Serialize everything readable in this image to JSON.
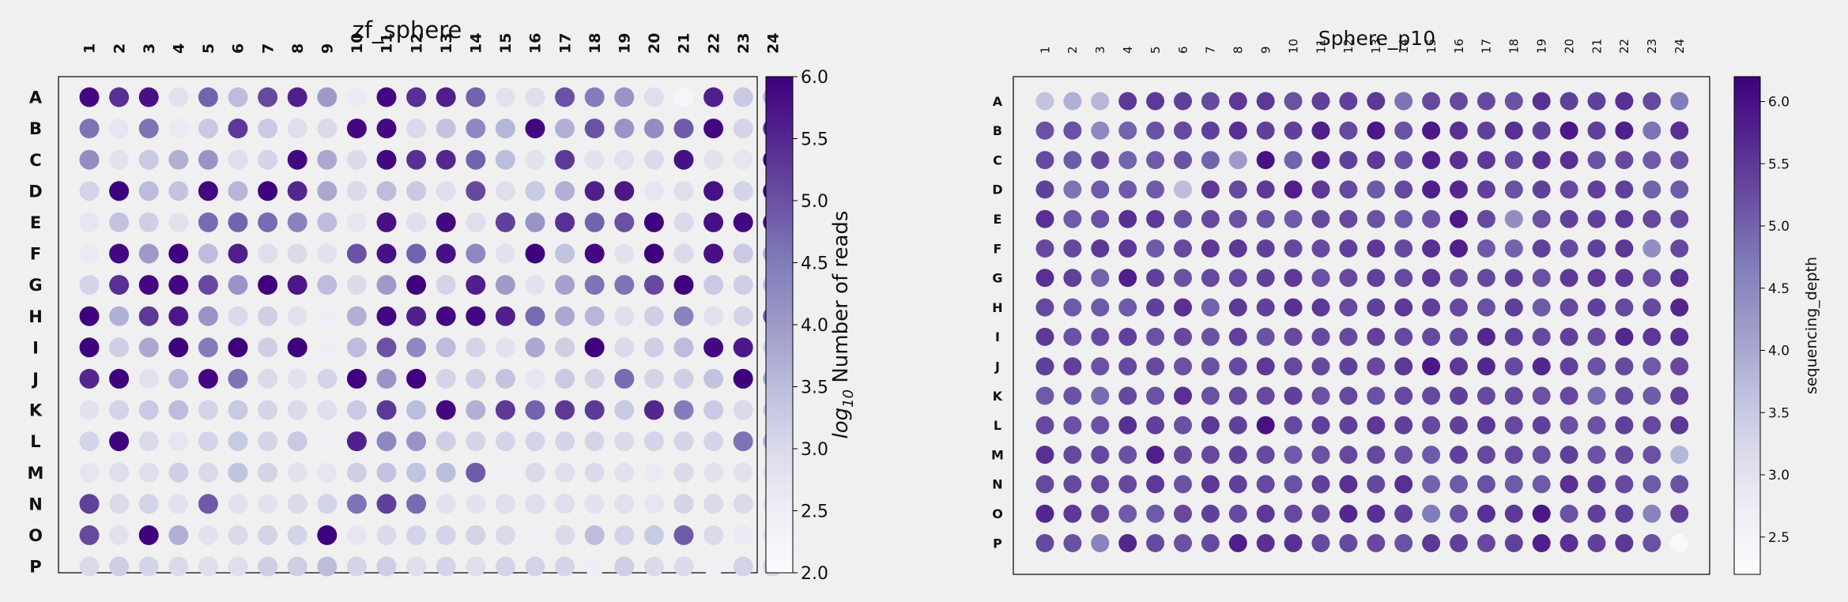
{
  "chart_data": [
    {
      "type": "heatmap",
      "title": "zf_sphere",
      "rows": [
        "A",
        "B",
        "C",
        "D",
        "E",
        "F",
        "G",
        "H",
        "I",
        "J",
        "K",
        "L",
        "M",
        "N",
        "O",
        "P"
      ],
      "columns": [
        "1",
        "2",
        "3",
        "4",
        "5",
        "6",
        "7",
        "8",
        "9",
        "10",
        "11",
        "12",
        "13",
        "14",
        "15",
        "16",
        "17",
        "18",
        "19",
        "20",
        "21",
        "22",
        "23",
        "24"
      ],
      "colorbar": {
        "label_prefix": "log",
        "label_sub": "10",
        "label_suffix": " Number of reads",
        "min": 2.0,
        "max": 6.0,
        "ticks": [
          "2.0",
          "2.5",
          "3.0",
          "3.5",
          "4.0",
          "4.5",
          "5.0",
          "5.5",
          "6.0"
        ]
      },
      "colormap": [
        "#fcfbfd",
        "#efedf5",
        "#dadaeb",
        "#bcbddc",
        "#9e9ac8",
        "#807dba",
        "#6a51a3",
        "#54278f",
        "#3f007d"
      ],
      "values": [
        [
          5.9,
          5.4,
          5.8,
          2.8,
          4.8,
          3.5,
          5.1,
          5.6,
          4.0,
          2.6,
          5.9,
          5.4,
          5.6,
          4.8,
          2.8,
          2.9,
          5.0,
          4.5,
          4.1,
          2.9,
          2.2,
          5.6,
          3.3,
          3.7
        ],
        [
          4.6,
          2.7,
          4.6,
          2.6,
          3.3,
          5.3,
          3.3,
          2.9,
          3.0,
          5.9,
          5.9,
          3.0,
          3.4,
          4.3,
          3.6,
          5.9,
          3.7,
          5.0,
          4.1,
          4.2,
          4.9,
          5.9,
          3.1,
          5.4
        ],
        [
          4.2,
          2.8,
          3.3,
          3.7,
          4.1,
          2.9,
          3.1,
          5.9,
          3.8,
          3.0,
          5.9,
          5.4,
          5.5,
          4.8,
          3.5,
          2.8,
          5.3,
          2.8,
          2.8,
          3.0,
          5.8,
          2.8,
          2.7,
          6.0
        ],
        [
          3.1,
          6.0,
          3.5,
          3.4,
          5.9,
          3.6,
          6.0,
          5.5,
          3.8,
          3.0,
          3.5,
          3.3,
          2.9,
          5.1,
          2.9,
          3.3,
          3.7,
          5.6,
          5.7,
          2.7,
          2.9,
          5.8,
          3.1,
          6.0
        ],
        [
          2.7,
          3.4,
          3.2,
          2.8,
          4.7,
          4.8,
          4.7,
          4.4,
          3.5,
          2.7,
          5.8,
          2.9,
          5.9,
          2.9,
          5.2,
          4.1,
          5.4,
          4.8,
          5.0,
          6.0,
          3.0,
          5.8,
          5.9,
          5.9
        ],
        [
          2.6,
          5.9,
          4.0,
          6.0,
          3.5,
          5.6,
          2.9,
          3.0,
          2.8,
          5.0,
          5.8,
          4.8,
          5.8,
          4.3,
          2.8,
          6.0,
          3.4,
          5.9,
          2.8,
          6.0,
          3.0,
          5.8,
          3.3,
          3.8
        ],
        [
          3.1,
          5.4,
          5.9,
          5.9,
          5.1,
          4.1,
          6.0,
          5.7,
          3.5,
          3.0,
          4.0,
          6.0,
          3.1,
          5.6,
          4.0,
          2.8,
          3.9,
          4.6,
          4.6,
          5.1,
          6.0,
          3.3,
          3.2,
          3.5
        ],
        [
          6.0,
          3.7,
          5.3,
          5.7,
          4.1,
          3.0,
          3.2,
          2.8,
          2.5,
          3.7,
          5.9,
          5.6,
          5.9,
          5.9,
          5.6,
          4.7,
          3.8,
          3.6,
          2.9,
          3.2,
          4.4,
          2.8,
          3.1,
          4.9
        ],
        [
          6.0,
          3.2,
          3.8,
          6.0,
          4.5,
          6.0,
          3.2,
          6.0,
          2.5,
          3.5,
          5.0,
          4.3,
          3.5,
          3.1,
          2.8,
          3.8,
          3.2,
          6.0,
          3.0,
          3.2,
          3.5,
          5.9,
          5.7,
          3.2
        ],
        [
          5.5,
          6.0,
          2.8,
          3.6,
          5.9,
          4.6,
          3.0,
          2.8,
          3.1,
          6.0,
          4.1,
          6.0,
          3.1,
          3.2,
          3.4,
          2.7,
          3.3,
          3.1,
          4.7,
          3.1,
          3.2,
          3.4,
          6.0,
          3.8
        ],
        [
          2.8,
          3.1,
          3.3,
          3.5,
          3.1,
          3.3,
          3.1,
          3.0,
          2.9,
          3.3,
          5.3,
          3.5,
          5.9,
          3.7,
          5.3,
          4.8,
          5.3,
          5.3,
          3.3,
          5.5,
          4.5,
          3.3,
          3.0,
          3.3
        ],
        [
          3.1,
          6.0,
          3.0,
          2.7,
          3.1,
          3.3,
          3.1,
          3.3,
          2.4,
          5.6,
          4.3,
          4.1,
          3.2,
          3.1,
          3.1,
          3.1,
          3.1,
          3.1,
          3.0,
          3.1,
          3.1,
          3.1,
          4.6,
          3.7
        ],
        [
          2.7,
          2.9,
          2.9,
          3.2,
          3.0,
          3.4,
          3.1,
          2.8,
          2.7,
          3.2,
          3.4,
          3.4,
          3.5,
          4.9,
          2.4,
          3.0,
          2.9,
          3.0,
          2.8,
          2.6,
          3.0,
          2.8,
          2.8,
          2.9
        ],
        [
          5.2,
          3.0,
          3.1,
          2.8,
          4.9,
          2.8,
          2.8,
          3.0,
          3.1,
          4.6,
          5.2,
          4.7,
          2.8,
          2.8,
          2.9,
          2.9,
          2.9,
          2.8,
          2.8,
          2.7,
          3.1,
          3.0,
          3.0,
          2.9
        ],
        [
          5.1,
          2.8,
          6.0,
          3.7,
          2.8,
          3.0,
          3.1,
          3.1,
          6.0,
          2.7,
          3.0,
          3.1,
          3.1,
          3.1,
          3.0,
          2.4,
          3.0,
          3.5,
          3.1,
          3.3,
          4.9,
          3.0,
          2.6,
          2.9
        ],
        [
          3.0,
          3.2,
          3.1,
          3.0,
          2.9,
          2.9,
          3.2,
          3.2,
          3.5,
          3.1,
          3.2,
          2.9,
          3.1,
          2.9,
          3.1,
          3.1,
          3.1,
          2.5,
          3.2,
          3.0,
          3.0,
          2.4,
          3.1,
          3.1
        ]
      ]
    },
    {
      "type": "heatmap",
      "title": "Sphere_p10",
      "rows": [
        "A",
        "B",
        "C",
        "D",
        "E",
        "F",
        "G",
        "H",
        "I",
        "J",
        "K",
        "L",
        "M",
        "N",
        "O",
        "P"
      ],
      "columns": [
        "1",
        "2",
        "3",
        "4",
        "5",
        "6",
        "7",
        "8",
        "9",
        "10",
        "11",
        "12",
        "13",
        "14",
        "15",
        "16",
        "17",
        "18",
        "19",
        "20",
        "21",
        "22",
        "23",
        "24"
      ],
      "colorbar": {
        "label": "sequencing_depth",
        "min": 2.2,
        "max": 6.2,
        "ticks": [
          "2.5",
          "3.0",
          "3.5",
          "4.0",
          "4.5",
          "5.0",
          "5.5",
          "6.0"
        ]
      },
      "colormap": [
        "#fcfbfd",
        "#efedf5",
        "#dadaeb",
        "#bcbddc",
        "#9e9ac8",
        "#807dba",
        "#6a51a3",
        "#54278f",
        "#3f007d"
      ],
      "values": [
        [
          3.6,
          3.9,
          3.8,
          5.5,
          5.5,
          5.4,
          5.3,
          5.5,
          5.5,
          5.2,
          5.4,
          5.4,
          5.5,
          4.8,
          5.3,
          5.3,
          5.3,
          5.2,
          5.6,
          5.4,
          5.4,
          5.6,
          5.3,
          4.7
        ],
        [
          5.2,
          5.2,
          4.5,
          5.0,
          5.2,
          5.3,
          5.4,
          5.6,
          5.4,
          5.4,
          5.8,
          5.3,
          5.9,
          5.2,
          5.9,
          5.6,
          5.4,
          5.6,
          5.4,
          5.9,
          5.4,
          5.8,
          4.8,
          5.6
        ],
        [
          5.3,
          5.1,
          5.3,
          5.0,
          5.1,
          5.2,
          5.0,
          4.2,
          6.0,
          5.0,
          5.8,
          5.4,
          5.5,
          5.2,
          5.8,
          5.6,
          5.5,
          5.3,
          5.6,
          5.6,
          5.2,
          5.3,
          5.1,
          5.2
        ],
        [
          5.4,
          4.8,
          5.1,
          5.1,
          5.1,
          3.7,
          5.5,
          5.3,
          5.5,
          5.8,
          5.5,
          5.3,
          5.1,
          5.3,
          5.8,
          5.7,
          5.4,
          5.2,
          5.4,
          5.3,
          5.4,
          5.4,
          5.0,
          5.1
        ],
        [
          5.6,
          5.1,
          5.2,
          5.6,
          5.5,
          5.2,
          5.3,
          5.2,
          5.2,
          5.1,
          5.3,
          5.3,
          5.2,
          5.1,
          5.2,
          5.9,
          5.3,
          4.4,
          5.2,
          5.4,
          5.4,
          5.5,
          5.3,
          5.3
        ],
        [
          5.3,
          5.3,
          5.5,
          5.5,
          5.1,
          5.3,
          5.5,
          5.5,
          5.4,
          5.3,
          5.3,
          5.4,
          5.5,
          5.3,
          5.6,
          5.8,
          5.1,
          5.0,
          5.4,
          5.3,
          5.4,
          5.5,
          4.4,
          5.3
        ],
        [
          5.6,
          5.4,
          5.0,
          5.8,
          5.4,
          5.2,
          5.3,
          5.3,
          5.4,
          5.5,
          5.2,
          5.3,
          5.4,
          5.3,
          5.5,
          5.3,
          5.3,
          5.4,
          5.2,
          5.5,
          5.5,
          5.5,
          5.2,
          5.6
        ],
        [
          5.3,
          5.1,
          5.1,
          5.1,
          5.4,
          5.6,
          5.0,
          5.5,
          5.4,
          5.6,
          5.5,
          5.3,
          5.4,
          5.5,
          5.4,
          5.3,
          5.2,
          5.4,
          5.1,
          5.3,
          5.4,
          5.3,
          5.3,
          5.7
        ],
        [
          5.5,
          5.2,
          5.3,
          5.4,
          5.2,
          5.3,
          5.2,
          5.4,
          5.2,
          5.3,
          5.3,
          5.3,
          5.4,
          5.3,
          5.3,
          5.3,
          5.7,
          5.4,
          5.3,
          5.4,
          5.3,
          5.7,
          5.5,
          5.6
        ],
        [
          5.4,
          5.4,
          5.2,
          5.3,
          5.3,
          5.2,
          5.2,
          5.3,
          5.5,
          5.3,
          5.3,
          5.4,
          5.3,
          5.5,
          5.9,
          5.5,
          5.7,
          5.3,
          5.7,
          5.4,
          5.2,
          5.3,
          5.1,
          5.3
        ],
        [
          5.1,
          5.2,
          4.9,
          5.3,
          5.2,
          5.6,
          5.2,
          5.3,
          5.3,
          5.4,
          5.2,
          5.3,
          5.2,
          5.3,
          5.3,
          5.4,
          5.3,
          5.3,
          5.2,
          5.3,
          4.9,
          5.3,
          5.1,
          5.4
        ],
        [
          5.3,
          5.2,
          5.2,
          5.6,
          5.4,
          5.2,
          5.5,
          5.4,
          6.0,
          5.3,
          5.4,
          5.4,
          5.5,
          5.4,
          5.3,
          5.4,
          5.5,
          5.3,
          5.4,
          5.2,
          5.2,
          5.4,
          5.3,
          5.5
        ],
        [
          5.6,
          5.3,
          5.3,
          5.2,
          5.8,
          5.3,
          5.3,
          5.4,
          5.3,
          5.1,
          5.2,
          5.3,
          5.3,
          5.2,
          5.1,
          5.4,
          5.3,
          5.3,
          5.2,
          5.4,
          5.2,
          5.3,
          5.2,
          3.8
        ],
        [
          5.3,
          5.3,
          5.3,
          5.3,
          5.5,
          5.2,
          5.5,
          5.4,
          5.3,
          5.2,
          5.4,
          5.6,
          5.3,
          5.6,
          5.0,
          5.1,
          5.2,
          5.1,
          5.1,
          5.6,
          5.4,
          5.3,
          5.1,
          5.2
        ],
        [
          5.7,
          5.5,
          5.3,
          5.1,
          5.1,
          5.3,
          5.4,
          5.3,
          5.5,
          5.3,
          5.3,
          5.7,
          5.6,
          5.4,
          4.7,
          5.2,
          5.6,
          5.5,
          5.9,
          5.2,
          5.4,
          5.4,
          4.6,
          5.4
        ],
        [
          5.3,
          5.2,
          4.6,
          5.7,
          5.3,
          5.2,
          5.3,
          5.8,
          5.6,
          5.6,
          5.3,
          5.3,
          5.3,
          5.2,
          5.5,
          5.4,
          5.3,
          5.4,
          5.8,
          5.6,
          5.4,
          5.5,
          5.2,
          2.3
        ]
      ]
    }
  ]
}
